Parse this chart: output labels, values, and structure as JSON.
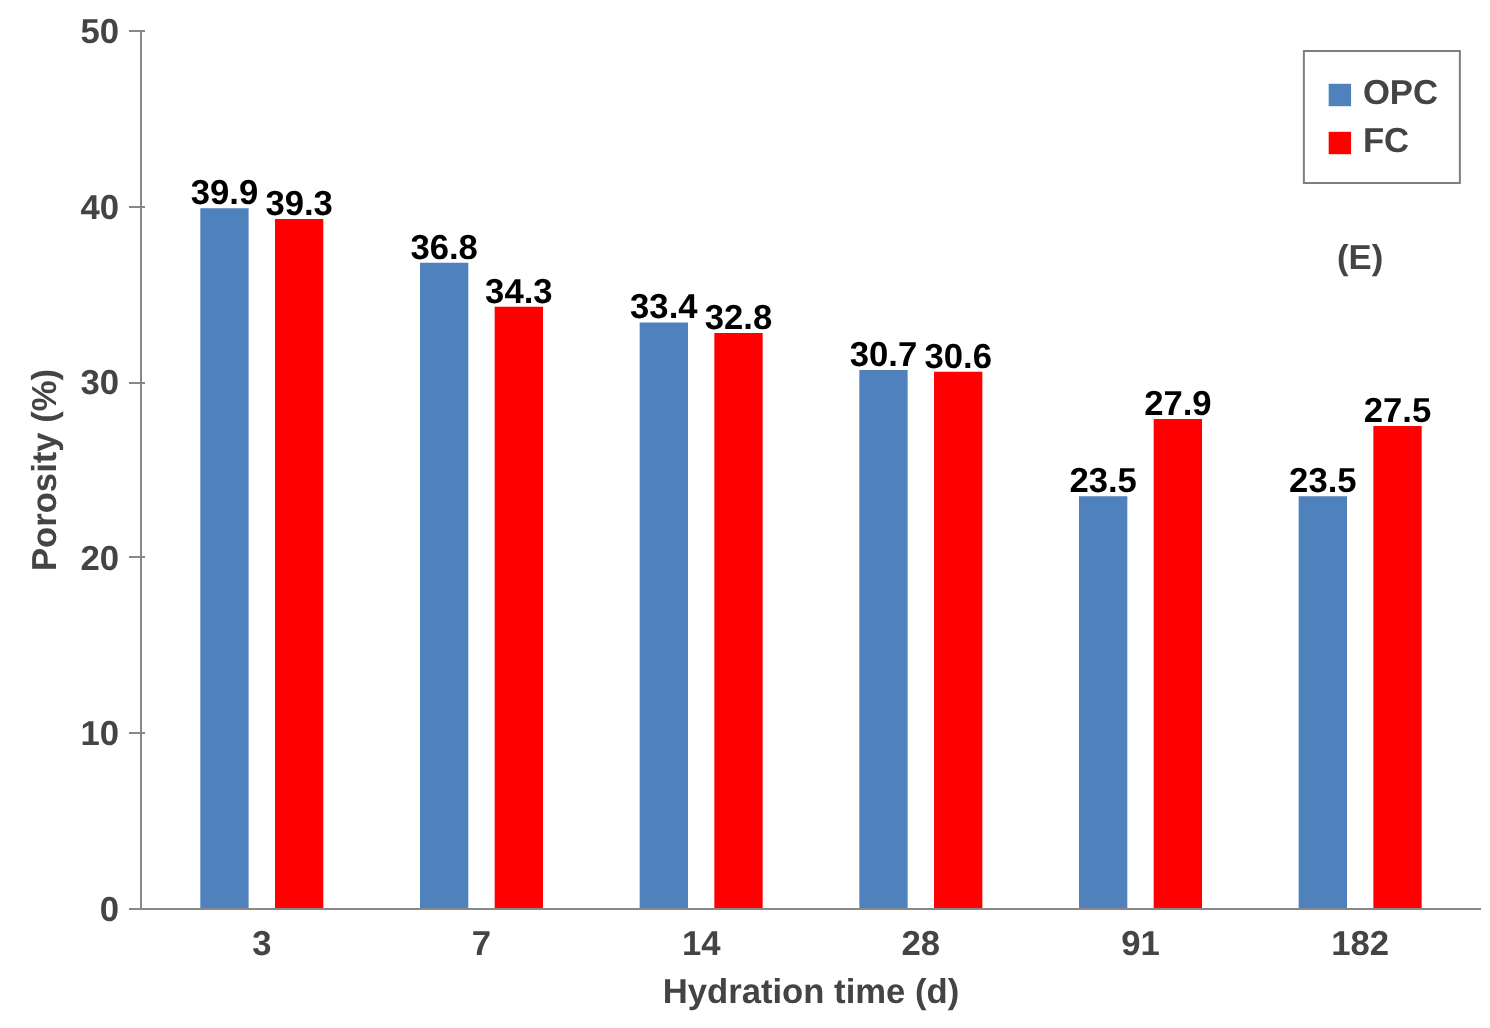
{
  "chart_data": {
    "type": "bar",
    "xlabel": "Hydration time (d)",
    "ylabel": "Porosity (%)",
    "categories": [
      "3",
      "7",
      "14",
      "28",
      "91",
      "182"
    ],
    "series": [
      {
        "name": "OPC",
        "color": "#4f81bd",
        "values": [
          39.9,
          36.8,
          33.4,
          30.7,
          23.5,
          23.5
        ]
      },
      {
        "name": "FC",
        "color": "#ff0000",
        "values": [
          39.3,
          34.3,
          32.8,
          30.6,
          27.9,
          27.5
        ]
      }
    ],
    "ylim": [
      0,
      50
    ],
    "yticks": [
      0,
      10,
      20,
      30,
      40,
      50
    ],
    "data_labels": true,
    "legend": "top right",
    "grid": false,
    "annotations": [
      "(E)"
    ]
  }
}
